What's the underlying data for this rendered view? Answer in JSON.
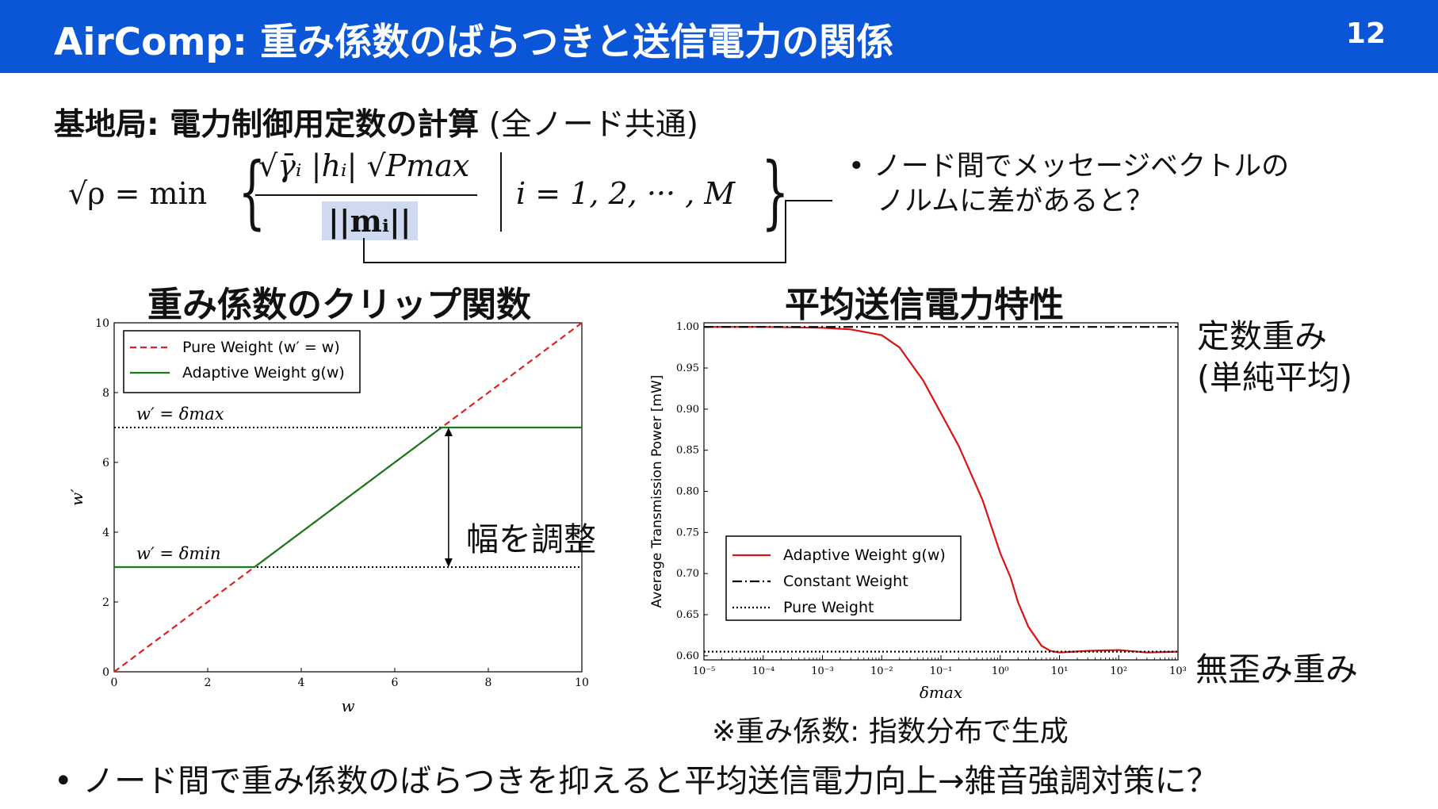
{
  "header": {
    "title": "AirComp: 重み係数のばらつきと送信電力の関係",
    "page_number": "12"
  },
  "subheading": {
    "bold": "基地局: 電力制御用定数の計算",
    "rest": " (全ノード共通)"
  },
  "formula": {
    "lhs": "√ρ = min",
    "numerator": "√γ̄ᵢ |hᵢ| √Pmax",
    "denominator": "||mᵢ||",
    "condition": "i = 1, 2, ··· , M"
  },
  "note_right": {
    "line1": "• ノード間でメッセージベクトルの",
    "line2": "ノルムに差があると？"
  },
  "left_panel": {
    "title": "重み係数のクリップ関数",
    "annotation": "幅を調整"
  },
  "right_panel": {
    "title": "平均送信電力特性",
    "annotation_top_line1": "定数重み",
    "annotation_top_line2": "(単純平均)",
    "annotation_bottom": "無歪み重み",
    "footnote": "※重み係数: 指数分布で生成"
  },
  "bottom_note": "• ノード間で重み係数のばらつきを抑えると平均送信電力向上→雑音強調対策に？",
  "chart_data": [
    {
      "type": "line",
      "xlabel": "w",
      "ylabel": "w′",
      "xlim": [
        0,
        10
      ],
      "ylim": [
        0,
        10
      ],
      "xticks": [
        "0",
        "2",
        "4",
        "6",
        "8",
        "10"
      ],
      "yticks": [
        "0",
        "2",
        "4",
        "6",
        "8",
        "10"
      ],
      "grid": false,
      "legend_position": "top-left",
      "hlines": [
        {
          "label": "w′ = δmax",
          "y": 7,
          "style": "dotted",
          "color": "#000000"
        },
        {
          "label": "w′ = δmin",
          "y": 3,
          "style": "dotted",
          "color": "#000000"
        }
      ],
      "series": [
        {
          "name": "Pure Weight (w′ = w)",
          "color": "#dd2222",
          "style": "dashed",
          "x": [
            0,
            10
          ],
          "y": [
            0,
            10
          ]
        },
        {
          "name": "Adaptive Weight g(w)",
          "color": "#1a7a1a",
          "style": "solid",
          "x": [
            0,
            3,
            7,
            10
          ],
          "y": [
            3,
            3,
            7,
            7
          ]
        }
      ]
    },
    {
      "type": "line",
      "xlabel": "δmax",
      "ylabel": "Average Transmission Power [mW]",
      "xscale": "log",
      "xlim": [
        1e-05,
        1000
      ],
      "ylim": [
        0.595,
        1.005
      ],
      "xticks": [
        "10⁻⁵",
        "10⁻⁴",
        "10⁻³",
        "10⁻²",
        "10⁻¹",
        "10⁰",
        "10¹",
        "10²",
        "10³"
      ],
      "yticks": [
        "0.60",
        "0.65",
        "0.70",
        "0.75",
        "0.80",
        "0.85",
        "0.90",
        "0.95",
        "1.00"
      ],
      "grid": false,
      "legend_position": "bottom-left",
      "series": [
        {
          "name": "Adaptive Weight g(w)",
          "color": "#dd1111",
          "style": "solid",
          "x": [
            1e-05,
            0.0001,
            0.001,
            0.003,
            0.01,
            0.02,
            0.05,
            0.1,
            0.2,
            0.5,
            1,
            1.5,
            2,
            3,
            5,
            7,
            10,
            30,
            100,
            300,
            1000
          ],
          "y": [
            1.0,
            1.0,
            0.999,
            0.997,
            0.99,
            0.975,
            0.935,
            0.895,
            0.855,
            0.79,
            0.725,
            0.695,
            0.665,
            0.635,
            0.612,
            0.606,
            0.604,
            0.606,
            0.607,
            0.604,
            0.605
          ]
        },
        {
          "name": "Constant Weight",
          "color": "#000000",
          "style": "dashdot",
          "x": [
            1e-05,
            1000
          ],
          "y": [
            1.0,
            1.0
          ]
        },
        {
          "name": "Pure Weight",
          "color": "#000000",
          "style": "dotted",
          "x": [
            1e-05,
            1000
          ],
          "y": [
            0.605,
            0.605
          ]
        }
      ]
    }
  ]
}
